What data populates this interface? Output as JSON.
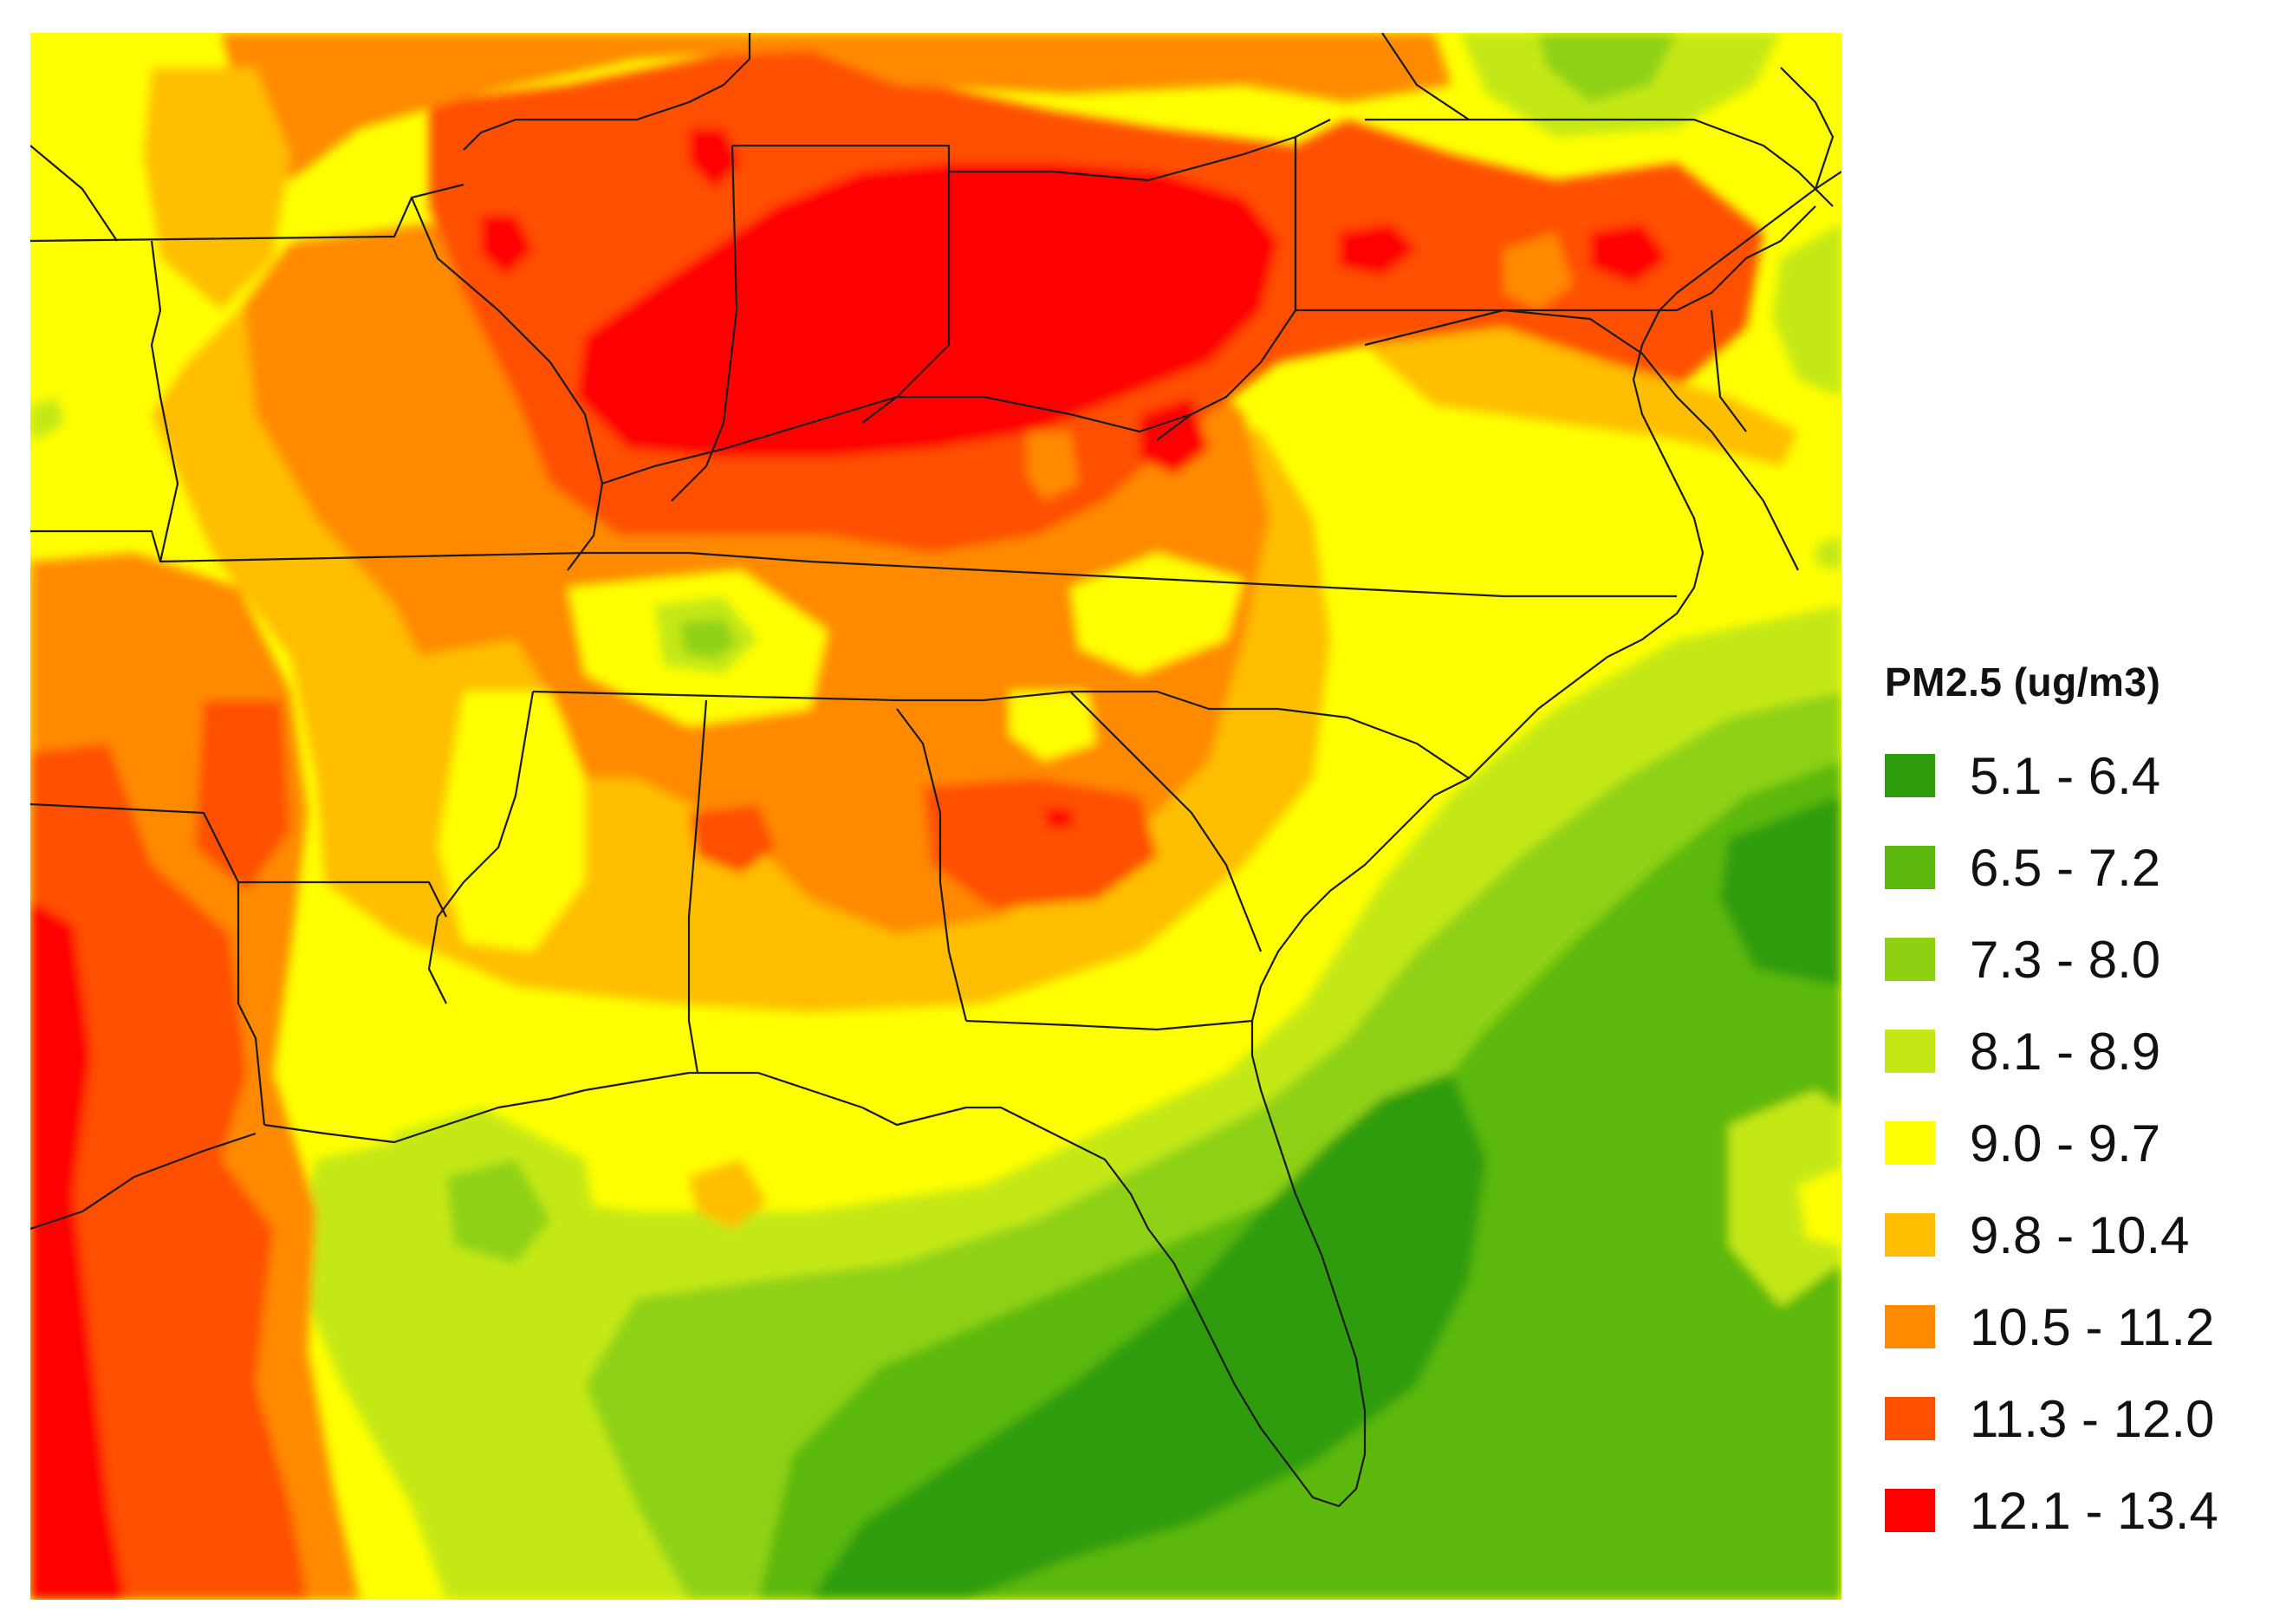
{
  "legend": {
    "title": "PM2.5 (ug/m3)",
    "classes": [
      {
        "range": "5.1 - 6.4",
        "min": 5.1,
        "max": 6.4,
        "color": "#2e9c0b"
      },
      {
        "range": "6.5 - 7.2",
        "min": 6.5,
        "max": 7.2,
        "color": "#5cb80d"
      },
      {
        "range": "7.3 - 8.0",
        "min": 7.3,
        "max": 8.0,
        "color": "#8fd112"
      },
      {
        "range": "8.1 - 8.9",
        "min": 8.1,
        "max": 8.9,
        "color": "#c4e816"
      },
      {
        "range": "9.0 - 9.7",
        "min": 9.0,
        "max": 9.7,
        "color": "#ffff00"
      },
      {
        "range": "9.8 - 10.4",
        "min": 9.8,
        "max": 10.4,
        "color": "#ffbe00"
      },
      {
        "range": "10.5 - 11.2",
        "min": 10.5,
        "max": 11.2,
        "color": "#ff8a00"
      },
      {
        "range": "11.3 - 12.0",
        "min": 11.3,
        "max": 12.0,
        "color": "#ff4f00"
      },
      {
        "range": "12.1 - 13.4",
        "min": 12.1,
        "max": 13.4,
        "color": "#ff0000"
      }
    ]
  },
  "map": {
    "type": "interpolated concentration surface",
    "basemap": "state boundaries and coastline",
    "boundary_color": "#1a1a1a"
  }
}
